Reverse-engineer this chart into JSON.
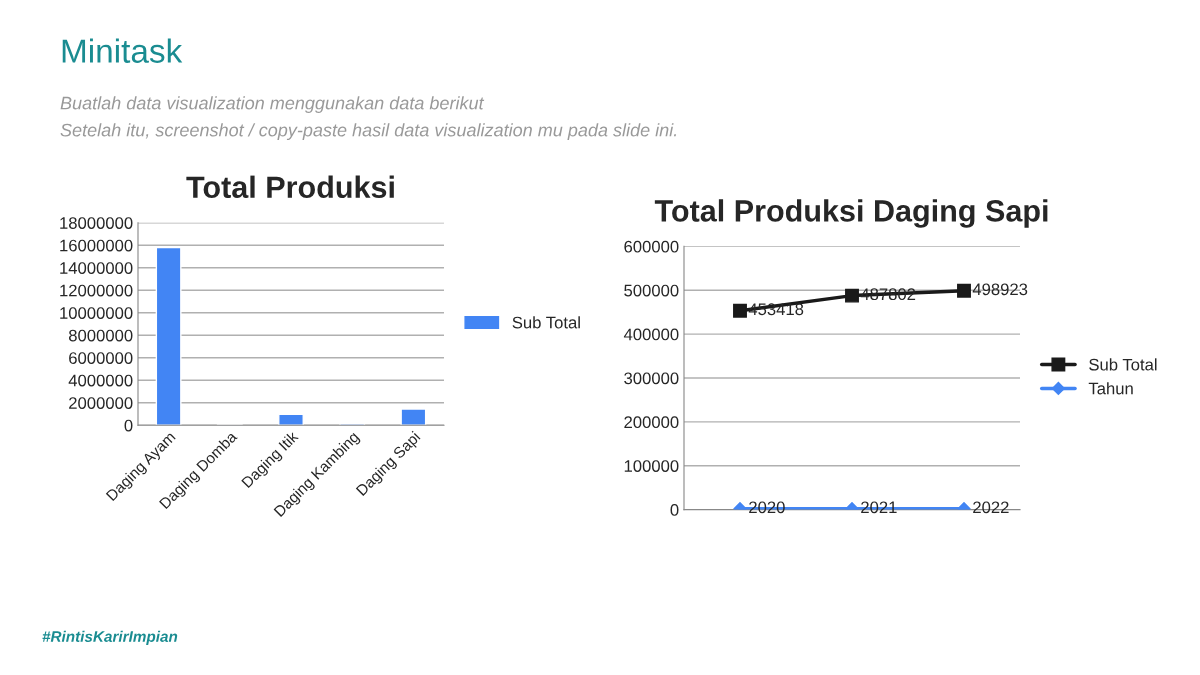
{
  "chart_data": [
    {
      "type": "bar",
      "title": "Total Produksi",
      "categories": [
        "Daging Ayam",
        "Daging Domba",
        "Daging Itik",
        "Daging Kambing",
        "Daging Sapi"
      ],
      "series": [
        {
          "name": "Sub Total",
          "color": "#4285f4",
          "values": [
            15800000,
            80000,
            980000,
            160000,
            1440000
          ]
        }
      ],
      "ylim": [
        0,
        18000000
      ],
      "yticks": [
        0,
        2000000,
        4000000,
        6000000,
        8000000,
        10000000,
        12000000,
        14000000,
        16000000,
        18000000
      ],
      "grid": "y",
      "legend": "right",
      "annotations": [
        "Minitask",
        "Buatlah data visualization menggunakan data berikut",
        "Setelah itu, screenshot / copy-paste hasil data visualization mu pada slide ini.",
        "#RintisKarirImpian"
      ]
    },
    {
      "type": "line",
      "title": "Total Produksi Daging Sapi",
      "categories": [
        null,
        null,
        null
      ],
      "series": [
        {
          "name": "Sub Total",
          "color": "#1a1a1a",
          "marker": "square",
          "values": [
            453418,
            487802,
            498923
          ]
        },
        {
          "name": "Tahun",
          "color": "#4285f4",
          "marker": "diamond",
          "values": [
            2020,
            2021,
            2022
          ]
        }
      ],
      "ylim": [
        0,
        600000
      ],
      "yticks": [
        0,
        100000,
        200000,
        300000,
        400000,
        500000,
        600000
      ],
      "grid": "y",
      "legend": "right",
      "data_labels": true
    }
  ]
}
